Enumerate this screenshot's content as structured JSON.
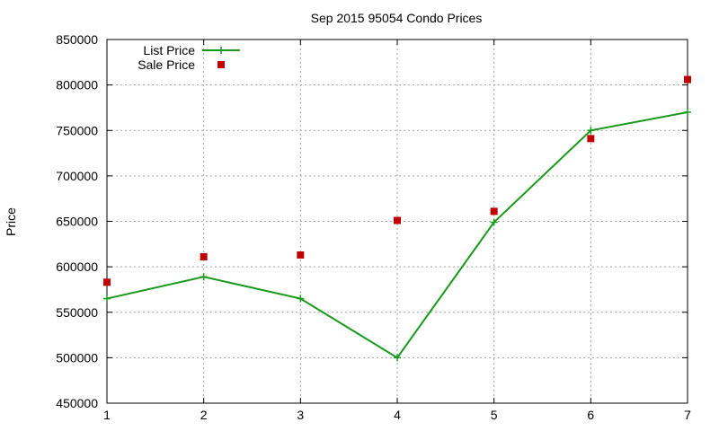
{
  "chart_data": {
    "type": "line",
    "title": "Sep 2015 95054 Condo Prices",
    "xlabel": "",
    "ylabel": "Price",
    "x": [
      1,
      2,
      3,
      4,
      5,
      6,
      7
    ],
    "xlim": [
      1,
      7
    ],
    "ylim": [
      450000,
      850000
    ],
    "xticks": [
      "1",
      "2",
      "3",
      "4",
      "5",
      "6",
      "7"
    ],
    "yticks": [
      "450000",
      "500000",
      "550000",
      "600000",
      "650000",
      "700000",
      "750000",
      "800000",
      "850000"
    ],
    "grid": true,
    "legend_position": "top-left",
    "series": [
      {
        "name": "List Price",
        "style": "linespoints",
        "color": "#1a9a1a",
        "values": [
          565000,
          589000,
          565000,
          500000,
          649000,
          750000,
          770000
        ]
      },
      {
        "name": "Sale Price",
        "style": "points",
        "color": "#c00000",
        "values": [
          583000,
          611000,
          613000,
          651000,
          661000,
          741000,
          806000
        ]
      }
    ]
  }
}
